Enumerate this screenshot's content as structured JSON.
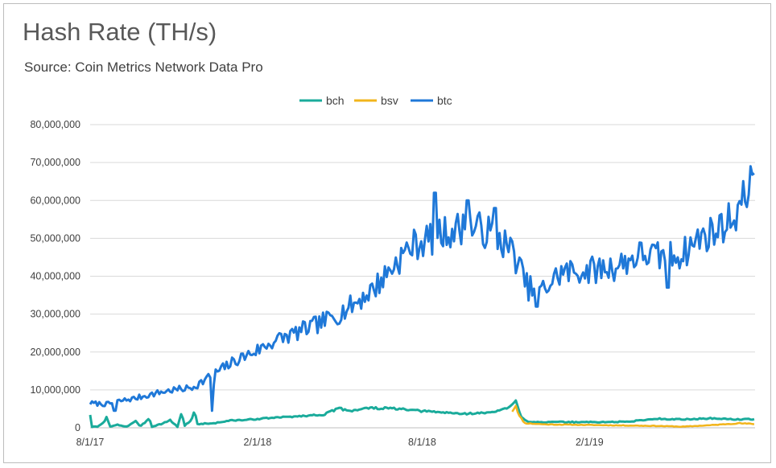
{
  "chart_data": {
    "type": "line",
    "title": "Hash Rate (TH/s)",
    "subtitle": "Source: Coin Metrics Network Data Pro",
    "xlabel": "",
    "ylabel": "",
    "ylim": [
      0,
      80000000
    ],
    "yticks": [
      0,
      10000000,
      20000000,
      30000000,
      40000000,
      50000000,
      60000000,
      70000000,
      80000000
    ],
    "ytick_labels": [
      "0",
      "10,000,000",
      "20,000,000",
      "30,000,000",
      "40,000,000",
      "50,000,000",
      "60,000,000",
      "70,000,000",
      "80,000,000"
    ],
    "xlim": [
      "2017-08-01",
      "2019-08-02"
    ],
    "xticks": [
      "2017-08-01",
      "2018-02-01",
      "2018-08-01",
      "2019-02-01"
    ],
    "xtick_labels": [
      "8/1/17",
      "2/1/18",
      "8/1/18",
      "2/1/19"
    ],
    "grid": "horizontal",
    "legend_position": "top-center",
    "series": [
      {
        "name": "bch",
        "color": "#1aab9b",
        "points": [
          [
            "2017-08-01",
            3500000
          ],
          [
            "2017-08-03",
            200000
          ],
          [
            "2017-08-10",
            300000
          ],
          [
            "2017-08-16",
            1500000
          ],
          [
            "2017-08-20",
            3200000
          ],
          [
            "2017-08-22",
            200000
          ],
          [
            "2017-09-01",
            800000
          ],
          [
            "2017-09-10",
            300000
          ],
          [
            "2017-09-20",
            1800000
          ],
          [
            "2017-09-25",
            200000
          ],
          [
            "2017-10-05",
            2600000
          ],
          [
            "2017-10-08",
            300000
          ],
          [
            "2017-10-20",
            1200000
          ],
          [
            "2017-10-28",
            2000000
          ],
          [
            "2017-11-05",
            300000
          ],
          [
            "2017-11-10",
            4300000
          ],
          [
            "2017-11-12",
            500000
          ],
          [
            "2017-11-20",
            1800000
          ],
          [
            "2017-11-24",
            5000000
          ],
          [
            "2017-11-26",
            1000000
          ],
          [
            "2017-12-15",
            1200000
          ],
          [
            "2018-01-01",
            1900000
          ],
          [
            "2018-01-20",
            2100000
          ],
          [
            "2018-02-15",
            2600000
          ],
          [
            "2018-03-15",
            3000000
          ],
          [
            "2018-04-15",
            3500000
          ],
          [
            "2018-05-01",
            5100000
          ],
          [
            "2018-05-15",
            4500000
          ],
          [
            "2018-06-01",
            5200000
          ],
          [
            "2018-07-01",
            5100000
          ],
          [
            "2018-07-20",
            4600000
          ],
          [
            "2018-08-15",
            4200000
          ],
          [
            "2018-09-15",
            3700000
          ],
          [
            "2018-10-15",
            4000000
          ],
          [
            "2018-11-05",
            5300000
          ],
          [
            "2018-11-12",
            7000000
          ],
          [
            "2018-11-18",
            3000000
          ],
          [
            "2018-11-25",
            1600000
          ],
          [
            "2018-12-15",
            1500000
          ],
          [
            "2019-01-15",
            1500000
          ],
          [
            "2019-02-15",
            1500000
          ],
          [
            "2019-03-15",
            1600000
          ],
          [
            "2019-04-15",
            2400000
          ],
          [
            "2019-05-15",
            2200000
          ],
          [
            "2019-06-15",
            2500000
          ],
          [
            "2019-07-15",
            2200000
          ],
          [
            "2019-08-01",
            2300000
          ]
        ]
      },
      {
        "name": "bsv",
        "color": "#f2b51c",
        "points": [
          [
            "2018-11-08",
            4500000
          ],
          [
            "2018-11-12",
            6000000
          ],
          [
            "2018-11-16",
            3000000
          ],
          [
            "2018-11-22",
            1200000
          ],
          [
            "2018-12-15",
            900000
          ],
          [
            "2019-01-15",
            800000
          ],
          [
            "2019-02-15",
            700000
          ],
          [
            "2019-03-15",
            600000
          ],
          [
            "2019-04-15",
            500000
          ],
          [
            "2019-05-15",
            300000
          ],
          [
            "2019-06-15",
            700000
          ],
          [
            "2019-07-15",
            1200000
          ],
          [
            "2019-08-01",
            1000000
          ]
        ]
      },
      {
        "name": "btc",
        "color": "#1f78d8",
        "points": [
          [
            "2017-08-01",
            6500000
          ],
          [
            "2017-08-20",
            6200000
          ],
          [
            "2017-09-01",
            7000000
          ],
          [
            "2017-09-20",
            7800000
          ],
          [
            "2017-10-01",
            8500000
          ],
          [
            "2017-10-20",
            9500000
          ],
          [
            "2017-11-01",
            10000000
          ],
          [
            "2017-11-20",
            10500000
          ],
          [
            "2017-12-01",
            12000000
          ],
          [
            "2017-12-20",
            15000000
          ],
          [
            "2018-01-10",
            18000000
          ],
          [
            "2018-02-01",
            20500000
          ],
          [
            "2018-02-20",
            23000000
          ],
          [
            "2018-03-15",
            25000000
          ],
          [
            "2018-04-10",
            27500000
          ],
          [
            "2018-05-01",
            30000000
          ],
          [
            "2018-05-20",
            33000000
          ],
          [
            "2018-06-10",
            37000000
          ],
          [
            "2018-07-01",
            43000000
          ],
          [
            "2018-07-20",
            48000000
          ],
          [
            "2018-08-10",
            50000000
          ],
          [
            "2018-09-01",
            52000000
          ],
          [
            "2018-09-20",
            53000000
          ],
          [
            "2018-10-10",
            52000000
          ],
          [
            "2018-10-25",
            50000000
          ],
          [
            "2018-11-10",
            46000000
          ],
          [
            "2018-11-25",
            37000000
          ],
          [
            "2018-12-10",
            36000000
          ],
          [
            "2019-01-01",
            41000000
          ],
          [
            "2019-02-01",
            41500000
          ],
          [
            "2019-03-01",
            42500000
          ],
          [
            "2019-04-01",
            46000000
          ],
          [
            "2019-04-20",
            45000000
          ],
          [
            "2019-05-15",
            46000000
          ],
          [
            "2019-06-01",
            50000000
          ],
          [
            "2019-06-20",
            52000000
          ],
          [
            "2019-07-10",
            56000000
          ],
          [
            "2019-07-25",
            62000000
          ],
          [
            "2019-08-01",
            63000000
          ]
        ],
        "spikes": [
          [
            "2017-08-28",
            4500000
          ],
          [
            "2017-12-13",
            4500000
          ],
          [
            "2017-12-15",
            11500000
          ],
          [
            "2018-08-15",
            62000000
          ],
          [
            "2018-09-20",
            60000000
          ],
          [
            "2018-10-20",
            58000000
          ],
          [
            "2018-12-05",
            32000000
          ],
          [
            "2019-04-28",
            37000000
          ],
          [
            "2019-07-28",
            69000000
          ]
        ]
      }
    ]
  }
}
